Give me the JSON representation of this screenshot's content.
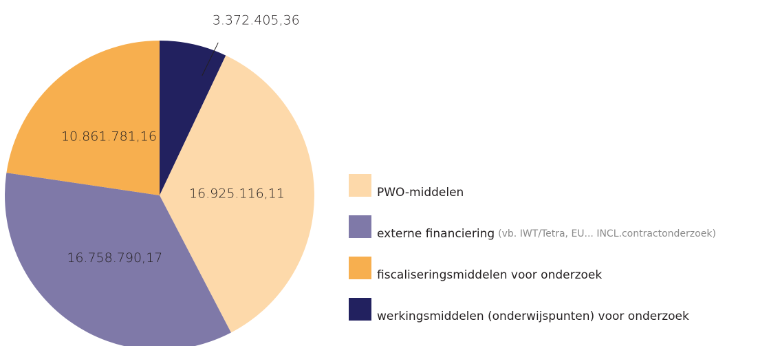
{
  "chart_data": {
    "type": "pie",
    "categories": [
      "werkingsmiddelen (onderwijspunten) voor onderzoek",
      "PWO-middelen",
      "externe financiering",
      "fiscaliseringsmiddelen voor onderzoek"
    ],
    "legend_notes": [
      null,
      null,
      "(vb. IWT/Tetra, EU... INCL.contractonderzoek)",
      null
    ],
    "values": [
      3372405.36,
      16925116.11,
      16758790.17,
      10861781.16
    ],
    "value_labels": [
      "3.372.405,36",
      "16.925.116,11",
      "16.758.790,17",
      "10.861.781,16"
    ],
    "colors": [
      "#22215f",
      "#fdd9aa",
      "#7f79a8",
      "#f7af4f"
    ],
    "legend_order": [
      1,
      2,
      3,
      0
    ]
  }
}
